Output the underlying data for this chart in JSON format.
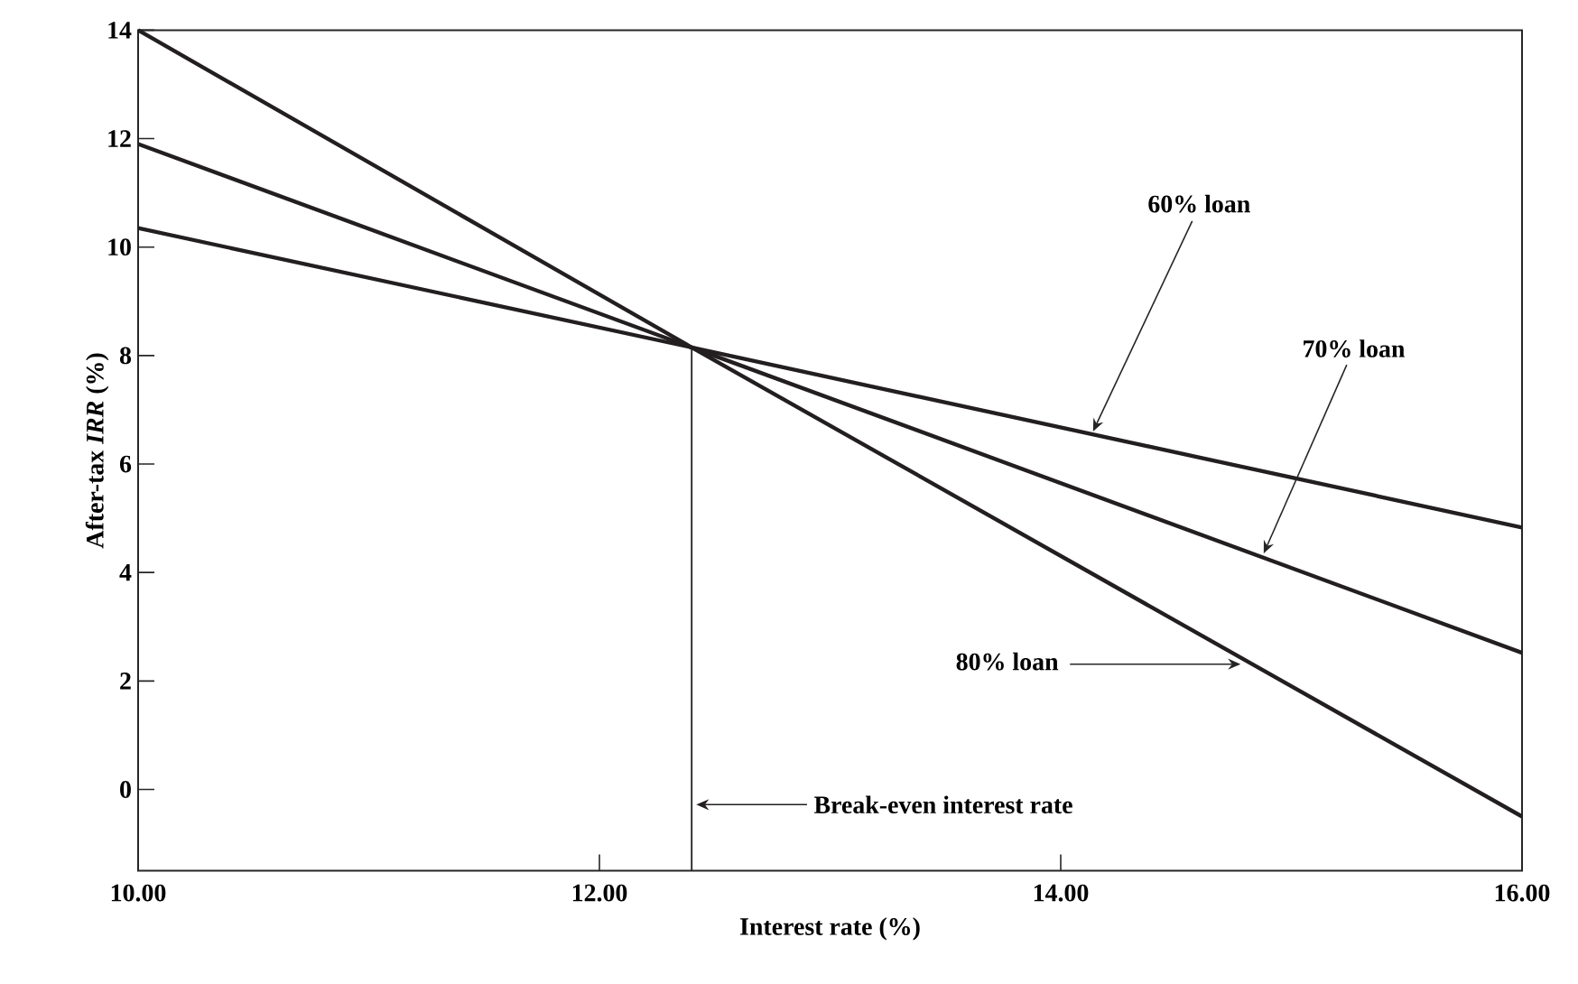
{
  "chart_data": {
    "type": "line",
    "xlabel": "Interest rate (%)",
    "ylabel": "After-tax *IRR* (%)",
    "xlim": [
      10,
      16
    ],
    "ylim": [
      -1.5,
      14
    ],
    "xticks": [
      {
        "value": 10,
        "label": "10.00"
      },
      {
        "value": 12,
        "label": "12.00"
      },
      {
        "value": 14,
        "label": "14.00"
      },
      {
        "value": 16,
        "label": "16.00"
      }
    ],
    "yticks": [
      0,
      2,
      4,
      6,
      8,
      10,
      12,
      14
    ],
    "x": [
      10,
      12.4,
      16
    ],
    "series": [
      {
        "color": "#231f20",
        "values": [
          10.35,
          8.15,
          4.83
        ]
      },
      {
        "color": "#231f20",
        "values": [
          11.9,
          8.15,
          2.52
        ]
      },
      {
        "color": "#231f20",
        "values": [
          14,
          8.15,
          -0.5
        ]
      }
    ],
    "annotations": [
      {
        "text": "60% loan",
        "x": 14.14,
        "y": 6.6
      },
      {
        "text": "70% loan",
        "x": 14.88,
        "y": 4.35
      },
      {
        "text": "80% loan",
        "x": 14.78,
        "y": 2.31
      }
    ],
    "ref_lines": [
      {
        "axis": "x",
        "value": 12.4,
        "label": "Break-even interest rate",
        "color": "#231f20"
      }
    ],
    "grid": false,
    "marker": "none",
    "line_style": "solid"
  }
}
